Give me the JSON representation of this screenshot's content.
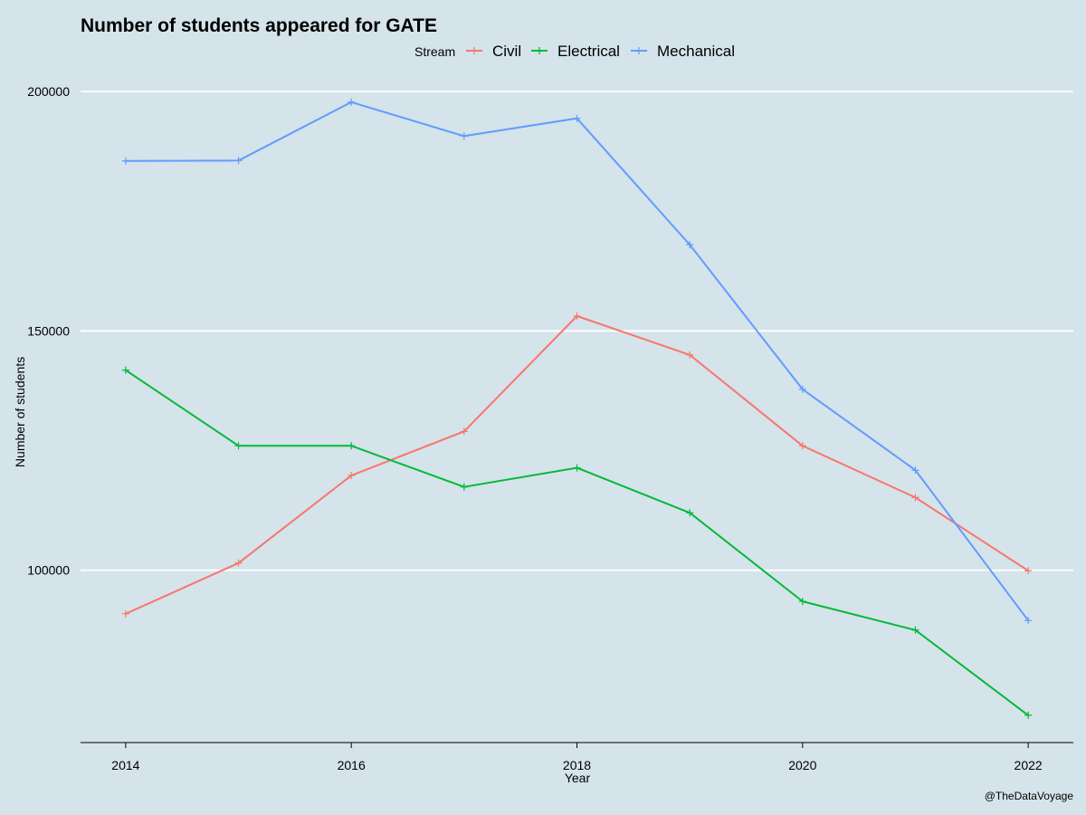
{
  "chart_data": {
    "type": "line",
    "title": "Number of students appeared for GATE",
    "xlabel": "Year",
    "ylabel": "Number of students",
    "legend_title": "Stream",
    "legend_position": "top",
    "caption": "@TheDataVoyage",
    "x": [
      2014,
      2015,
      2016,
      2017,
      2018,
      2019,
      2020,
      2021,
      2022
    ],
    "x_ticks": [
      2014,
      2016,
      2018,
      2020,
      2022
    ],
    "y_ticks": [
      100000,
      150000,
      200000
    ],
    "xlim": [
      2013.6,
      2022.4
    ],
    "ylim": [
      64000,
      204000
    ],
    "grid": "horizontal major only",
    "series": [
      {
        "name": "Civil",
        "color": "#f8766d",
        "values": [
          90900,
          101500,
          119800,
          129000,
          153100,
          145000,
          126000,
          115200,
          99900
        ]
      },
      {
        "name": "Electrical",
        "color": "#00ba38",
        "values": [
          141800,
          126000,
          126000,
          117400,
          121400,
          112000,
          93500,
          87500,
          69700
        ]
      },
      {
        "name": "Mechanical",
        "color": "#619cff",
        "values": [
          185500,
          185600,
          197800,
          190700,
          194400,
          168000,
          137800,
          120900,
          89500
        ]
      }
    ]
  }
}
